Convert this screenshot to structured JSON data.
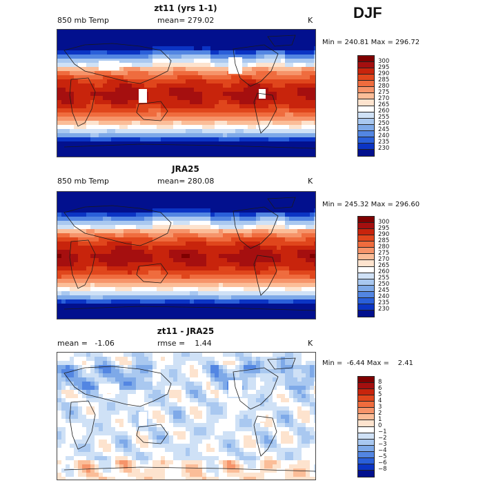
{
  "season": "DJF",
  "panels": [
    {
      "title": "zt11 (yrs 1-1)",
      "left_label": "850 mb Temp",
      "mid_label": "mean= 279.02",
      "right_label": "K",
      "minmax": "Min = 240.81 Max = 296.72",
      "colorbar": {
        "labels": [
          "300",
          "295",
          "290",
          "285",
          "280",
          "275",
          "270",
          "265",
          "260",
          "255",
          "250",
          "245",
          "240",
          "235",
          "230"
        ],
        "colors": [
          "#7f0000",
          "#a50f0f",
          "#c8240c",
          "#e0461c",
          "#ef6c3e",
          "#f6946a",
          "#fbbd98",
          "#fde3ce",
          "#ffffff",
          "#cfe1f6",
          "#a9c8f0",
          "#7ea9e8",
          "#5386e2",
          "#2a5fd9",
          "#0b34c4",
          "#02108e"
        ]
      },
      "field": "model_temperature",
      "map_features": [
        "white-missing-regions"
      ]
    },
    {
      "title": "JRA25",
      "left_label": "850 mb Temp",
      "mid_label": "mean= 280.08",
      "right_label": "K",
      "minmax": "Min = 245.32 Max = 296.60",
      "colorbar": {
        "labels": [
          "300",
          "295",
          "290",
          "285",
          "280",
          "275",
          "270",
          "265",
          "260",
          "255",
          "250",
          "245",
          "240",
          "235",
          "230"
        ],
        "colors": [
          "#7f0000",
          "#a50f0f",
          "#c8240c",
          "#e0461c",
          "#ef6c3e",
          "#f6946a",
          "#fbbd98",
          "#fde3ce",
          "#ffffff",
          "#cfe1f6",
          "#a9c8f0",
          "#7ea9e8",
          "#5386e2",
          "#2a5fd9",
          "#0b34c4",
          "#02108e"
        ]
      },
      "field": "reanalysis_temperature",
      "map_features": []
    },
    {
      "title": "zt11 - JRA25",
      "left_label": "mean =   -1.06",
      "mid_label": "rmse =    1.44",
      "right_label": "K",
      "minmax": "Min =  -6.44 Max =    2.41",
      "colorbar": {
        "labels": [
          "8",
          "6",
          "5",
          "4",
          "3",
          "2",
          "1",
          "0",
          "−1",
          "−2",
          "−3",
          "−4",
          "−5",
          "−6",
          "−8"
        ],
        "colors": [
          "#7f0000",
          "#a50f0f",
          "#c8240c",
          "#e0461c",
          "#ef6c3e",
          "#f6946a",
          "#fbbd98",
          "#fde3ce",
          "#ffffff",
          "#cfe1f6",
          "#a9c8f0",
          "#7ea9e8",
          "#5386e2",
          "#2a5fd9",
          "#0b34c4",
          "#02108e"
        ]
      },
      "field": "difference",
      "map_features": [
        "white-missing-regions"
      ]
    }
  ]
}
